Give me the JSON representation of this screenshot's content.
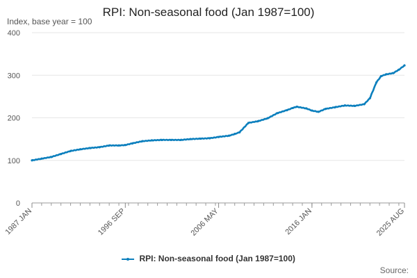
{
  "chart_data": {
    "type": "line",
    "title": "RPI: Non-seasonal food (Jan 1987=100)",
    "ylabel": "Index, base year = 100",
    "xlabel": "",
    "ylim": [
      0,
      400
    ],
    "yticks": [
      0,
      100,
      200,
      300,
      400
    ],
    "xlim": [
      "1987-01",
      "2025-08"
    ],
    "xticks": [
      "1987 JAN",
      "1996 SEP",
      "2006 MAY",
      "2016 JAN",
      "2025 AUG"
    ],
    "grid": true,
    "legend_position": "bottom",
    "series": [
      {
        "name": "RPI: Non-seasonal food (Jan 1987=100)",
        "color": "#0b7fbd",
        "points": [
          [
            "1987-01",
            100
          ],
          [
            "1988-01",
            104
          ],
          [
            "1989-01",
            108
          ],
          [
            "1990-01",
            115
          ],
          [
            "1991-01",
            122
          ],
          [
            "1992-01",
            126
          ],
          [
            "1993-01",
            129
          ],
          [
            "1994-01",
            131
          ],
          [
            "1995-01",
            135
          ],
          [
            "1996-01",
            135
          ],
          [
            "1996-09",
            136
          ],
          [
            "1997-06",
            140
          ],
          [
            "1998-06",
            145
          ],
          [
            "1999-06",
            147
          ],
          [
            "2000-06",
            148
          ],
          [
            "2001-06",
            148
          ],
          [
            "2002-06",
            148
          ],
          [
            "2003-06",
            150
          ],
          [
            "2004-06",
            151
          ],
          [
            "2005-06",
            152
          ],
          [
            "2006-05",
            155
          ],
          [
            "2007-06",
            158
          ],
          [
            "2008-01",
            162
          ],
          [
            "2008-07",
            166
          ],
          [
            "2009-06",
            188
          ],
          [
            "2010-06",
            192
          ],
          [
            "2011-06",
            199
          ],
          [
            "2012-06",
            211
          ],
          [
            "2013-06",
            218
          ],
          [
            "2014-01",
            223
          ],
          [
            "2014-06",
            226
          ],
          [
            "2015-06",
            222
          ],
          [
            "2016-01",
            217
          ],
          [
            "2016-09",
            214
          ],
          [
            "2017-06",
            221
          ],
          [
            "2018-06",
            225
          ],
          [
            "2019-06",
            229
          ],
          [
            "2020-06",
            228
          ],
          [
            "2021-06",
            232
          ],
          [
            "2022-01",
            246
          ],
          [
            "2022-09",
            283
          ],
          [
            "2023-03",
            298
          ],
          [
            "2023-09",
            302
          ],
          [
            "2024-06",
            305
          ],
          [
            "2025-01",
            313
          ],
          [
            "2025-08",
            323
          ]
        ]
      }
    ]
  },
  "source_label": "Source:"
}
